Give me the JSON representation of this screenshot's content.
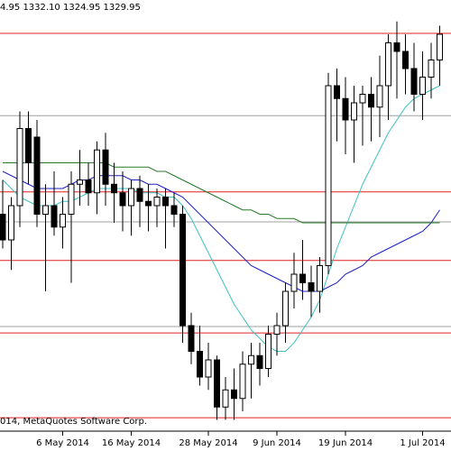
{
  "chart_data": {
    "type": "candlestick",
    "header": "4.95 1332.10 1324.95 1329.95",
    "copyright": "014, MetaQuotes Software Corp.",
    "categories": [
      null,
      null,
      null,
      null,
      null,
      null,
      null,
      "6 May 2014",
      null,
      null,
      null,
      null,
      null,
      null,
      null,
      "16 May 2014",
      null,
      null,
      null,
      null,
      null,
      null,
      null,
      null,
      "28 May 2014",
      null,
      null,
      null,
      null,
      null,
      null,
      null,
      "9 Jun 2014",
      null,
      null,
      null,
      null,
      null,
      null,
      null,
      "19 Jun 2014",
      null,
      null,
      null,
      null,
      null,
      null,
      null,
      null,
      "1 Jul 2014",
      null,
      null
    ],
    "open": [
      1288,
      1282,
      1290,
      1308,
      1306,
      1288,
      1290,
      1285,
      1288,
      1295,
      1296,
      1293,
      1303,
      1295,
      1293,
      1290,
      1294,
      1291,
      1290,
      1292,
      1290,
      1288,
      1262,
      1256,
      1250,
      1254,
      1243,
      1247,
      1245,
      1253,
      1255,
      1252,
      1260,
      1262,
      1270,
      1274,
      1272,
      1270,
      1276,
      1318,
      1315,
      1310,
      1314,
      1316,
      1313,
      1318,
      1328,
      1326,
      1322,
      1316,
      1320,
      1324
    ],
    "high": [
      1296,
      1292,
      1312,
      1312,
      1310,
      1295,
      1298,
      1292,
      1298,
      1303,
      1300,
      1305,
      1307,
      1300,
      1298,
      1296,
      1297,
      1295,
      1294,
      1294,
      1293,
      1290,
      1265,
      1262,
      1258,
      1255,
      1250,
      1252,
      1256,
      1258,
      1258,
      1262,
      1265,
      1272,
      1279,
      1282,
      1276,
      1278,
      1321,
      1322,
      1320,
      1318,
      1318,
      1320,
      1325,
      1330,
      1333,
      1330,
      1328,
      1326,
      1328,
      1332
    ],
    "low": [
      1280,
      1275,
      1285,
      1295,
      1285,
      1270,
      1283,
      1280,
      1272,
      1290,
      1290,
      1288,
      1290,
      1286,
      1284,
      1283,
      1285,
      1284,
      1285,
      1280,
      1285,
      1258,
      1253,
      1248,
      1247,
      1240,
      1240,
      1240,
      1242,
      1245,
      1248,
      1250,
      1255,
      1258,
      1266,
      1268,
      1264,
      1265,
      1274,
      1305,
      1302,
      1300,
      1304,
      1305,
      1306,
      1310,
      1315,
      1316,
      1312,
      1310,
      1315,
      1318
    ],
    "close": [
      1282,
      1290,
      1308,
      1300,
      1288,
      1290,
      1285,
      1288,
      1295,
      1296,
      1293,
      1303,
      1295,
      1293,
      1290,
      1294,
      1291,
      1290,
      1292,
      1290,
      1288,
      1262,
      1256,
      1250,
      1254,
      1243,
      1247,
      1245,
      1253,
      1255,
      1252,
      1260,
      1262,
      1270,
      1274,
      1272,
      1270,
      1276,
      1318,
      1315,
      1310,
      1314,
      1316,
      1313,
      1318,
      1328,
      1326,
      1322,
      1316,
      1320,
      1324,
      1330
    ],
    "ylim": [
      1238,
      1338
    ],
    "indicators": [
      {
        "color": "#40c0c0",
        "values": [
          1296,
          1294,
          1292,
          1291,
          1290,
          1290,
          1290,
          1291,
          1291,
          1292,
          1293,
          1294,
          1294,
          1294,
          1294,
          1294,
          1293,
          1293,
          1293,
          1292,
          1292,
          1290,
          1287,
          1283,
          1279,
          1275,
          1271,
          1267,
          1264,
          1261,
          1259,
          1257,
          1256,
          1256,
          1258,
          1261,
          1264,
          1268,
          1274,
          1280,
          1285,
          1290,
          1295,
          1299,
          1303,
          1307,
          1310,
          1313,
          1315,
          1316,
          1317,
          1318
        ]
      },
      {
        "color": "#2020c0",
        "values": [
          1298,
          1297,
          1296,
          1295,
          1294,
          1294,
          1294,
          1294,
          1295,
          1296,
          1296,
          1297,
          1297,
          1297,
          1297,
          1296,
          1296,
          1295,
          1295,
          1294,
          1293,
          1292,
          1290,
          1288,
          1286,
          1284,
          1282,
          1280,
          1278,
          1276,
          1275,
          1274,
          1273,
          1272,
          1271,
          1270,
          1270,
          1270,
          1271,
          1272,
          1274,
          1275,
          1276,
          1278,
          1279,
          1280,
          1281,
          1282,
          1283,
          1284,
          1286,
          1289
        ]
      },
      {
        "color": "#2a7a2a",
        "values": [
          1300,
          1300,
          1300,
          1300,
          1300,
          1300,
          1300,
          1300,
          1300,
          1300,
          1300,
          1300,
          1300,
          1299,
          1299,
          1299,
          1299,
          1299,
          1298,
          1298,
          1297,
          1296,
          1295,
          1294,
          1293,
          1292,
          1291,
          1290,
          1289,
          1289,
          1288,
          1288,
          1287,
          1287,
          1287,
          1286,
          1286,
          1286,
          1286,
          1286,
          1286,
          1286,
          1286,
          1286,
          1286,
          1286,
          1286,
          1286,
          1286,
          1286,
          1286,
          1286
        ]
      }
    ],
    "levels": [
      {
        "value": 1330.2,
        "color": "#e02020"
      },
      {
        "value": 1311,
        "color": "#a0a0a0"
      },
      {
        "value": 1293.2,
        "color": "#e02020"
      },
      {
        "value": 1286.2,
        "color": "#a0a0a0"
      },
      {
        "value": 1277.2,
        "color": "#e02020"
      },
      {
        "value": 1261.8,
        "color": "#a0a0a0"
      },
      {
        "value": 1260.3,
        "color": "#e02020"
      },
      {
        "value": 1240.5,
        "color": "#e02020"
      }
    ]
  }
}
